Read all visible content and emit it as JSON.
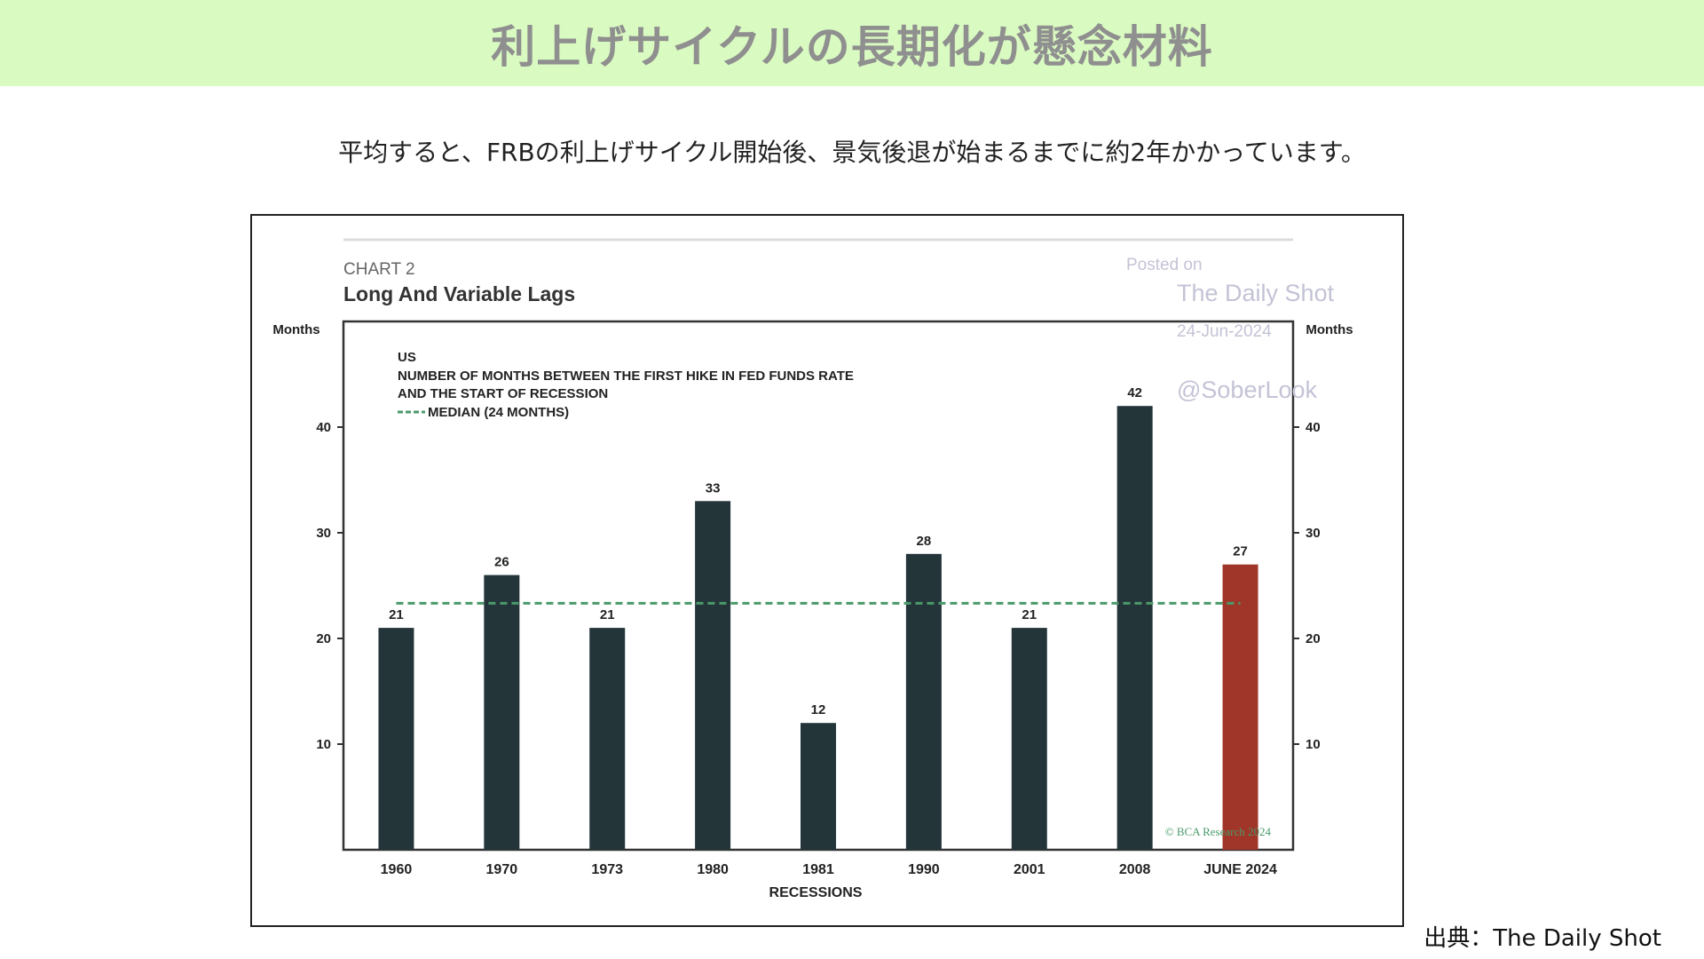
{
  "page": {
    "heading": "利上げサイクルの長期化が懸念材料",
    "subtitle": "平均すると、FRBの利上げサイクル開始後、景気後退が始まるまでに約2年かかっています。",
    "source": "出典：The Daily Shot"
  },
  "watermark": {
    "posted_on": "Posted on",
    "site": "The Daily Shot",
    "date": "24-Jun-2024",
    "handle": "@SoberLook"
  },
  "chart_data": {
    "type": "bar",
    "chart_label": "CHART 2",
    "title": "Long And Variable Lags",
    "annotation_lines": [
      "US",
      "NUMBER OF MONTHS BETWEEN THE FIRST HIKE IN FED FUNDS RATE",
      "AND THE START OF RECESSION"
    ],
    "median_label": "MEDIAN (24 MONTHS)",
    "median": 24,
    "ylabel_left": "Months",
    "ylabel_right": "Months",
    "xlabel": "RECESSIONS",
    "yticks": [
      10,
      20,
      30,
      40
    ],
    "ylim": [
      0,
      50
    ],
    "categories": [
      "1960",
      "1970",
      "1973",
      "1980",
      "1981",
      "1990",
      "2001",
      "2008",
      "JUNE 2024"
    ],
    "values": [
      21,
      26,
      21,
      33,
      12,
      28,
      21,
      42,
      27
    ],
    "bar_colors": [
      "#24353a",
      "#24353a",
      "#24353a",
      "#24353a",
      "#24353a",
      "#24353a",
      "#24353a",
      "#24353a",
      "#a0362a"
    ],
    "median_color": "#4a9a6a",
    "copyright": "© BCA Research 2024",
    "grid": false,
    "legend": "top-left"
  }
}
